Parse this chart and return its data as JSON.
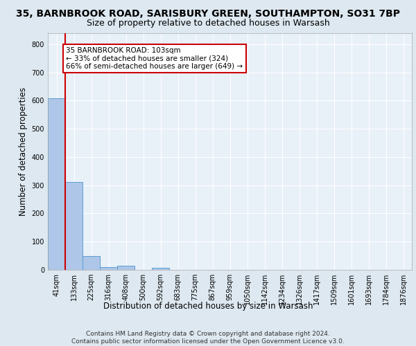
{
  "title_line1": "35, BARNBROOK ROAD, SARISBURY GREEN, SOUTHAMPTON, SO31 7BP",
  "title_line2": "Size of property relative to detached houses in Warsash",
  "xlabel": "Distribution of detached houses by size in Warsash",
  "ylabel": "Number of detached properties",
  "footer_line1": "Contains HM Land Registry data © Crown copyright and database right 2024.",
  "footer_line2": "Contains public sector information licensed under the Open Government Licence v3.0.",
  "bin_labels": [
    "41sqm",
    "133sqm",
    "225sqm",
    "316sqm",
    "408sqm",
    "500sqm",
    "592sqm",
    "683sqm",
    "775sqm",
    "867sqm",
    "959sqm",
    "1050sqm",
    "1142sqm",
    "1234sqm",
    "1326sqm",
    "1417sqm",
    "1509sqm",
    "1601sqm",
    "1693sqm",
    "1784sqm",
    "1876sqm"
  ],
  "bar_values": [
    608,
    311,
    50,
    11,
    14,
    0,
    8,
    0,
    0,
    0,
    0,
    0,
    0,
    0,
    0,
    0,
    0,
    0,
    0,
    0,
    0
  ],
  "bar_color": "#aec6e8",
  "bar_edge_color": "#5a9fd4",
  "vline_color": "#cc0000",
  "annotation_text": "35 BARNBROOK ROAD: 103sqm\n← 33% of detached houses are smaller (324)\n66% of semi-detached houses are larger (649) →",
  "annotation_box_facecolor": "#ffffff",
  "annotation_box_edgecolor": "#cc0000",
  "ylim": [
    0,
    840
  ],
  "yticks": [
    0,
    100,
    200,
    300,
    400,
    500,
    600,
    700,
    800
  ],
  "bg_color": "#dde8f0",
  "plot_bg_color": "#e8f0f8",
  "grid_color": "#ffffff",
  "title_fontsize": 10,
  "subtitle_fontsize": 9,
  "axis_label_fontsize": 8.5,
  "tick_fontsize": 7,
  "footer_fontsize": 6.5,
  "annotation_fontsize": 7.5
}
